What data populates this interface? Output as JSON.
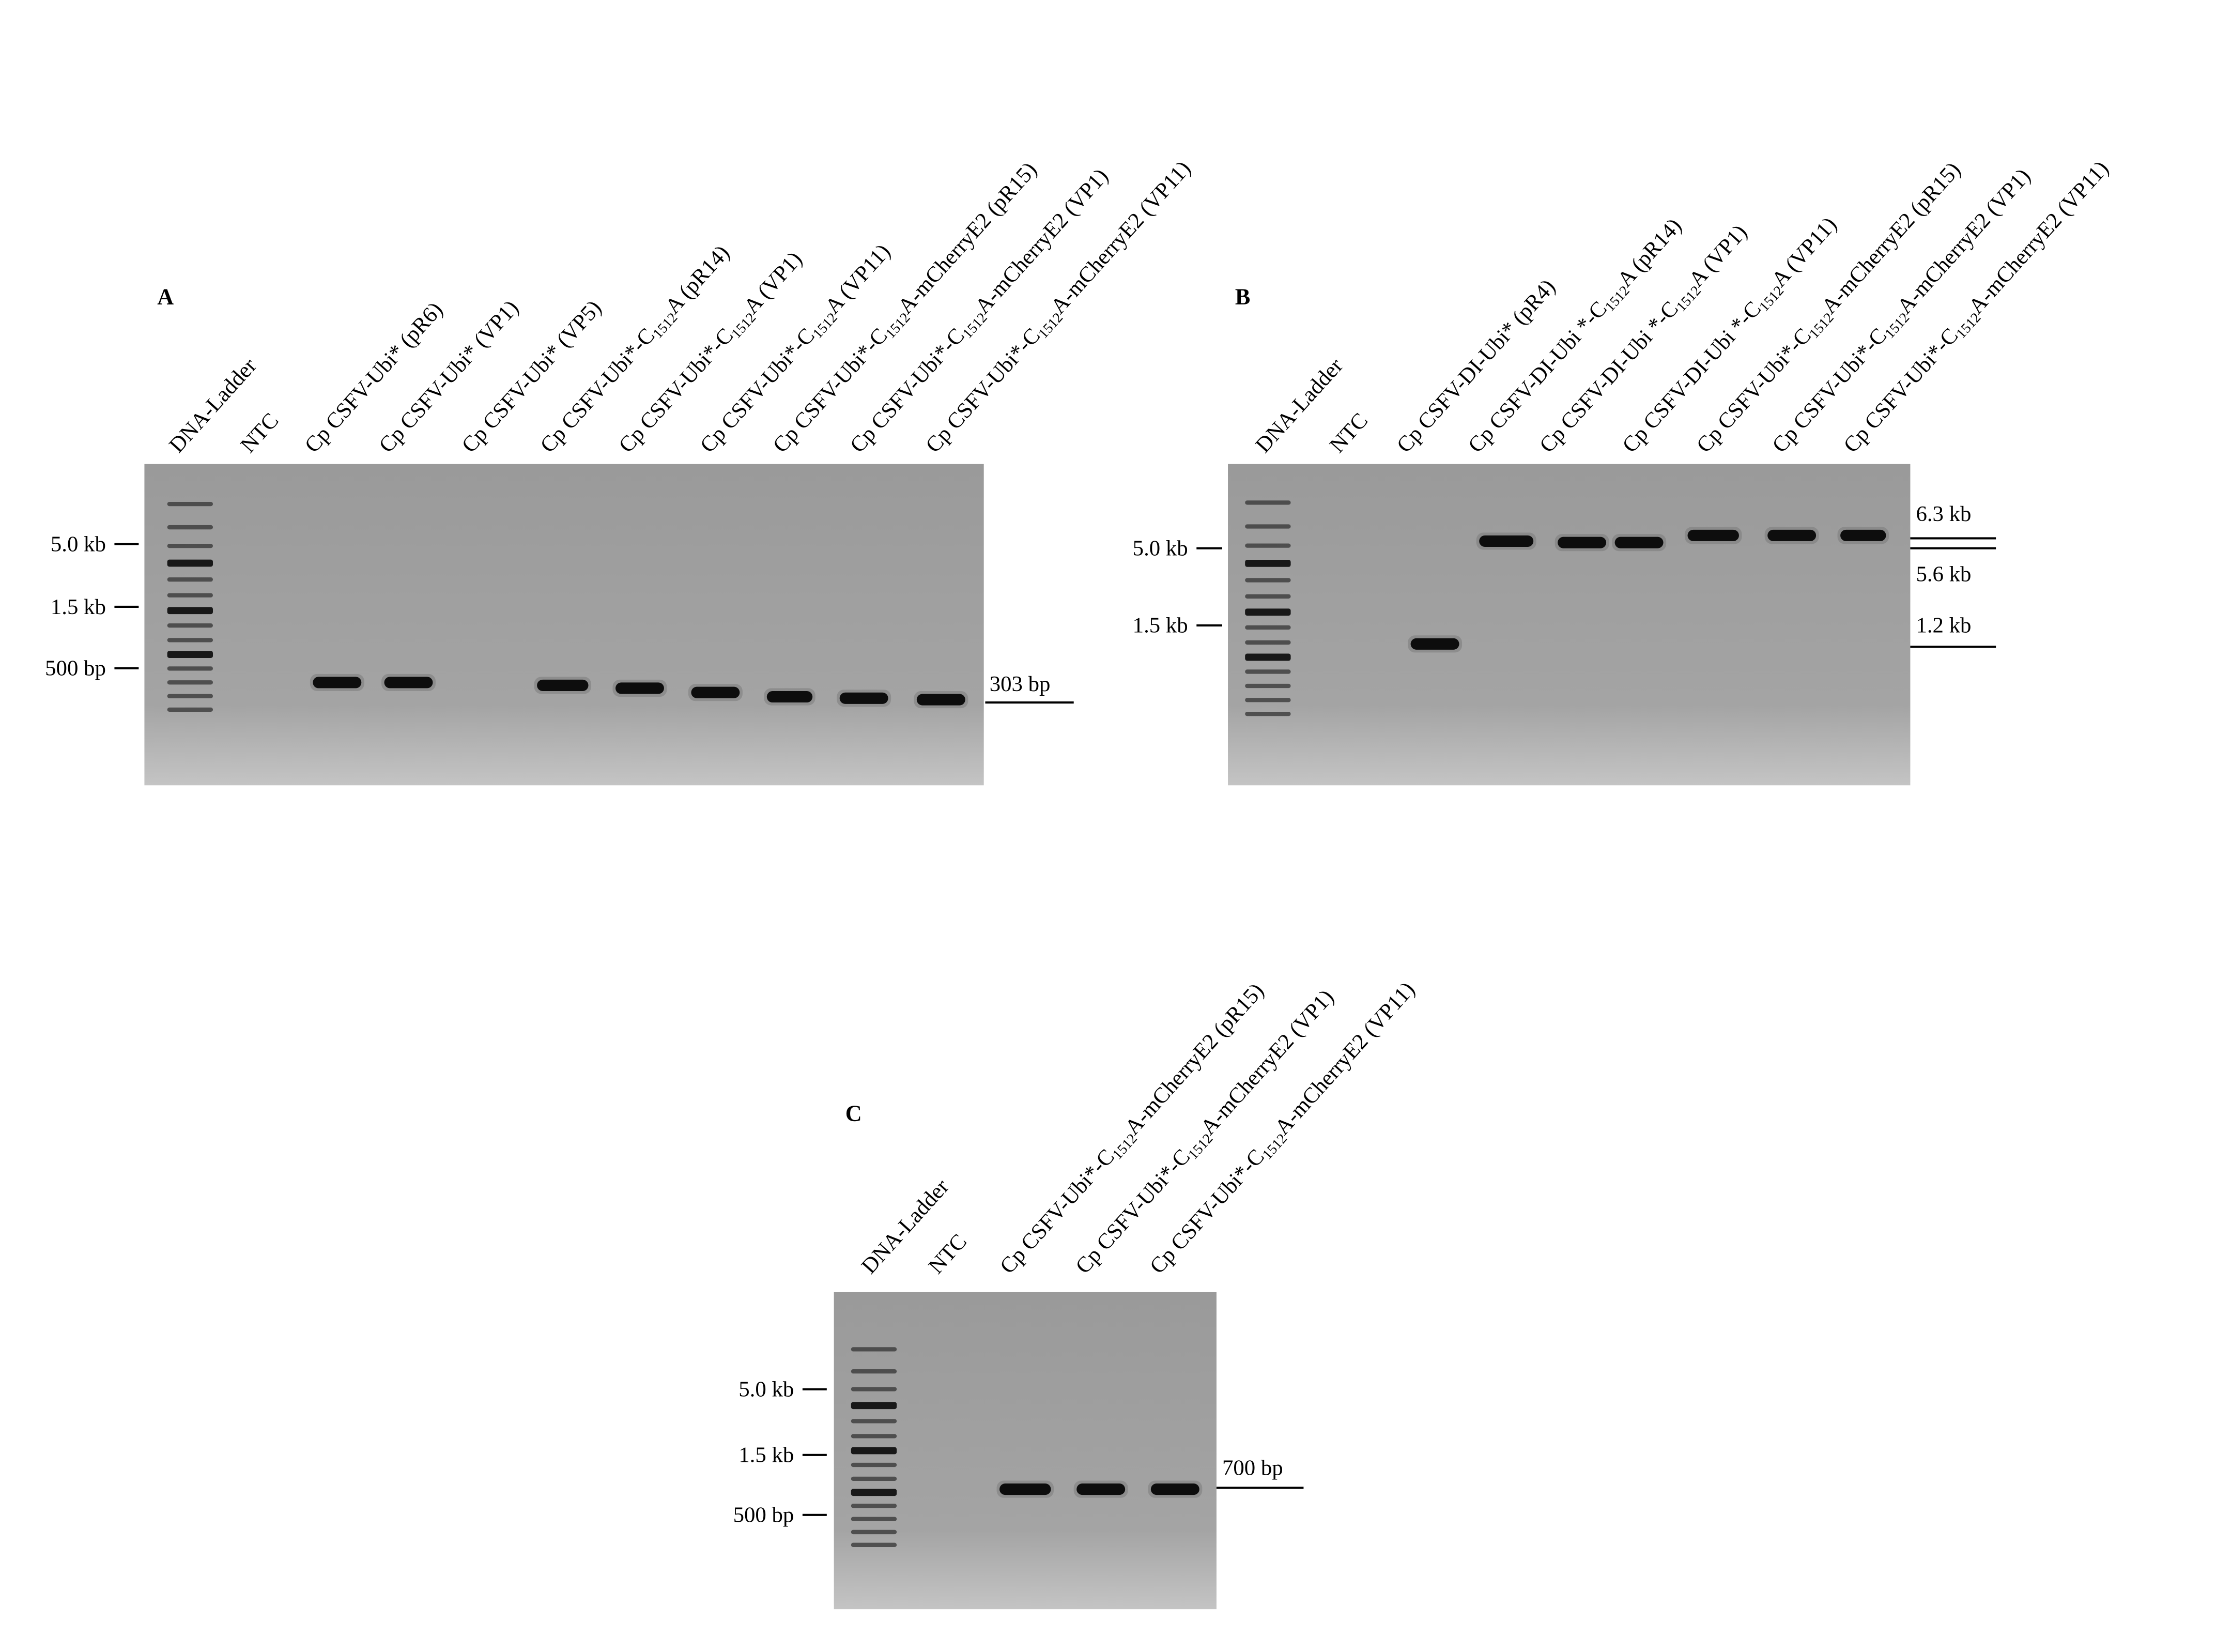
{
  "panels": [
    {
      "label": "A",
      "lanes": [
        [
          "DNA-Ladder"
        ],
        [
          "NTC"
        ],
        [
          "Cp CSFV-Ubi* (pR6)"
        ],
        [
          "Cp CSFV-Ubi* (VP1)"
        ],
        [
          "Cp CSFV-Ubi* (VP5)"
        ],
        [
          "Cp CSFV-Ubi*-C",
          "1512",
          "A (pR14)"
        ],
        [
          "Cp CSFV-Ubi*-C",
          "1512",
          "A (VP1)"
        ],
        [
          "Cp CSFV-Ubi*-C",
          "1512",
          "A (VP11)"
        ],
        [
          "Cp CSFV-Ubi*-C",
          "1512",
          "A-mCherryE2 (pR15)"
        ],
        [
          "Cp CSFV-Ubi*-C",
          "1512",
          "A-mCherryE2 (VP1)"
        ],
        [
          "Cp CSFV-Ubi*-C",
          "1512",
          "A-mCherryE2 (VP11)"
        ]
      ],
      "markers": [
        "5.0 kb",
        "1.5 kb",
        "500 bp"
      ],
      "band_labels": [
        "303 bp"
      ]
    },
    {
      "label": "B",
      "lanes": [
        [
          "DNA-Ladder"
        ],
        [
          "NTC"
        ],
        [
          "Cp CSFV-DI-Ubi* (pR4)"
        ],
        [
          "Cp CSFV-DI-Ubi *-C",
          "1512",
          "A (pR14)"
        ],
        [
          "Cp CSFV-DI-Ubi *-C",
          "1512",
          "A (VP1)"
        ],
        [
          "Cp CSFV-DI-Ubi *-C",
          "1512",
          "A (VP11)"
        ],
        [
          "Cp CSFV-Ubi*-C",
          "1512",
          "A-mCherryE2 (pR15)"
        ],
        [
          "Cp CSFV-Ubi*-C",
          "1512",
          "A-mCherryE2 (VP1)"
        ],
        [
          "Cp CSFV-Ubi*-C",
          "1512",
          "A-mCherryE2 (VP11)"
        ]
      ],
      "markers": [
        "5.0 kb",
        "1.5 kb"
      ],
      "band_labels": [
        "6.3 kb",
        "5.6 kb",
        "1.2 kb"
      ]
    },
    {
      "label": "C",
      "lanes": [
        [
          "DNA-Ladder"
        ],
        [
          "NTC"
        ],
        [
          "Cp CSFV-Ubi*-C",
          "1512",
          "A-mCherryE2 (pR15)"
        ],
        [
          "Cp CSFV-Ubi*-C",
          "1512",
          "A-mCherryE2 (VP1)"
        ],
        [
          "Cp CSFV-Ubi*-C",
          "1512",
          "A-mCherryE2 (VP11)"
        ]
      ],
      "markers": [
        "5.0 kb",
        "1.5 kb",
        "500 bp"
      ],
      "band_labels": [
        "700 bp"
      ]
    }
  ]
}
